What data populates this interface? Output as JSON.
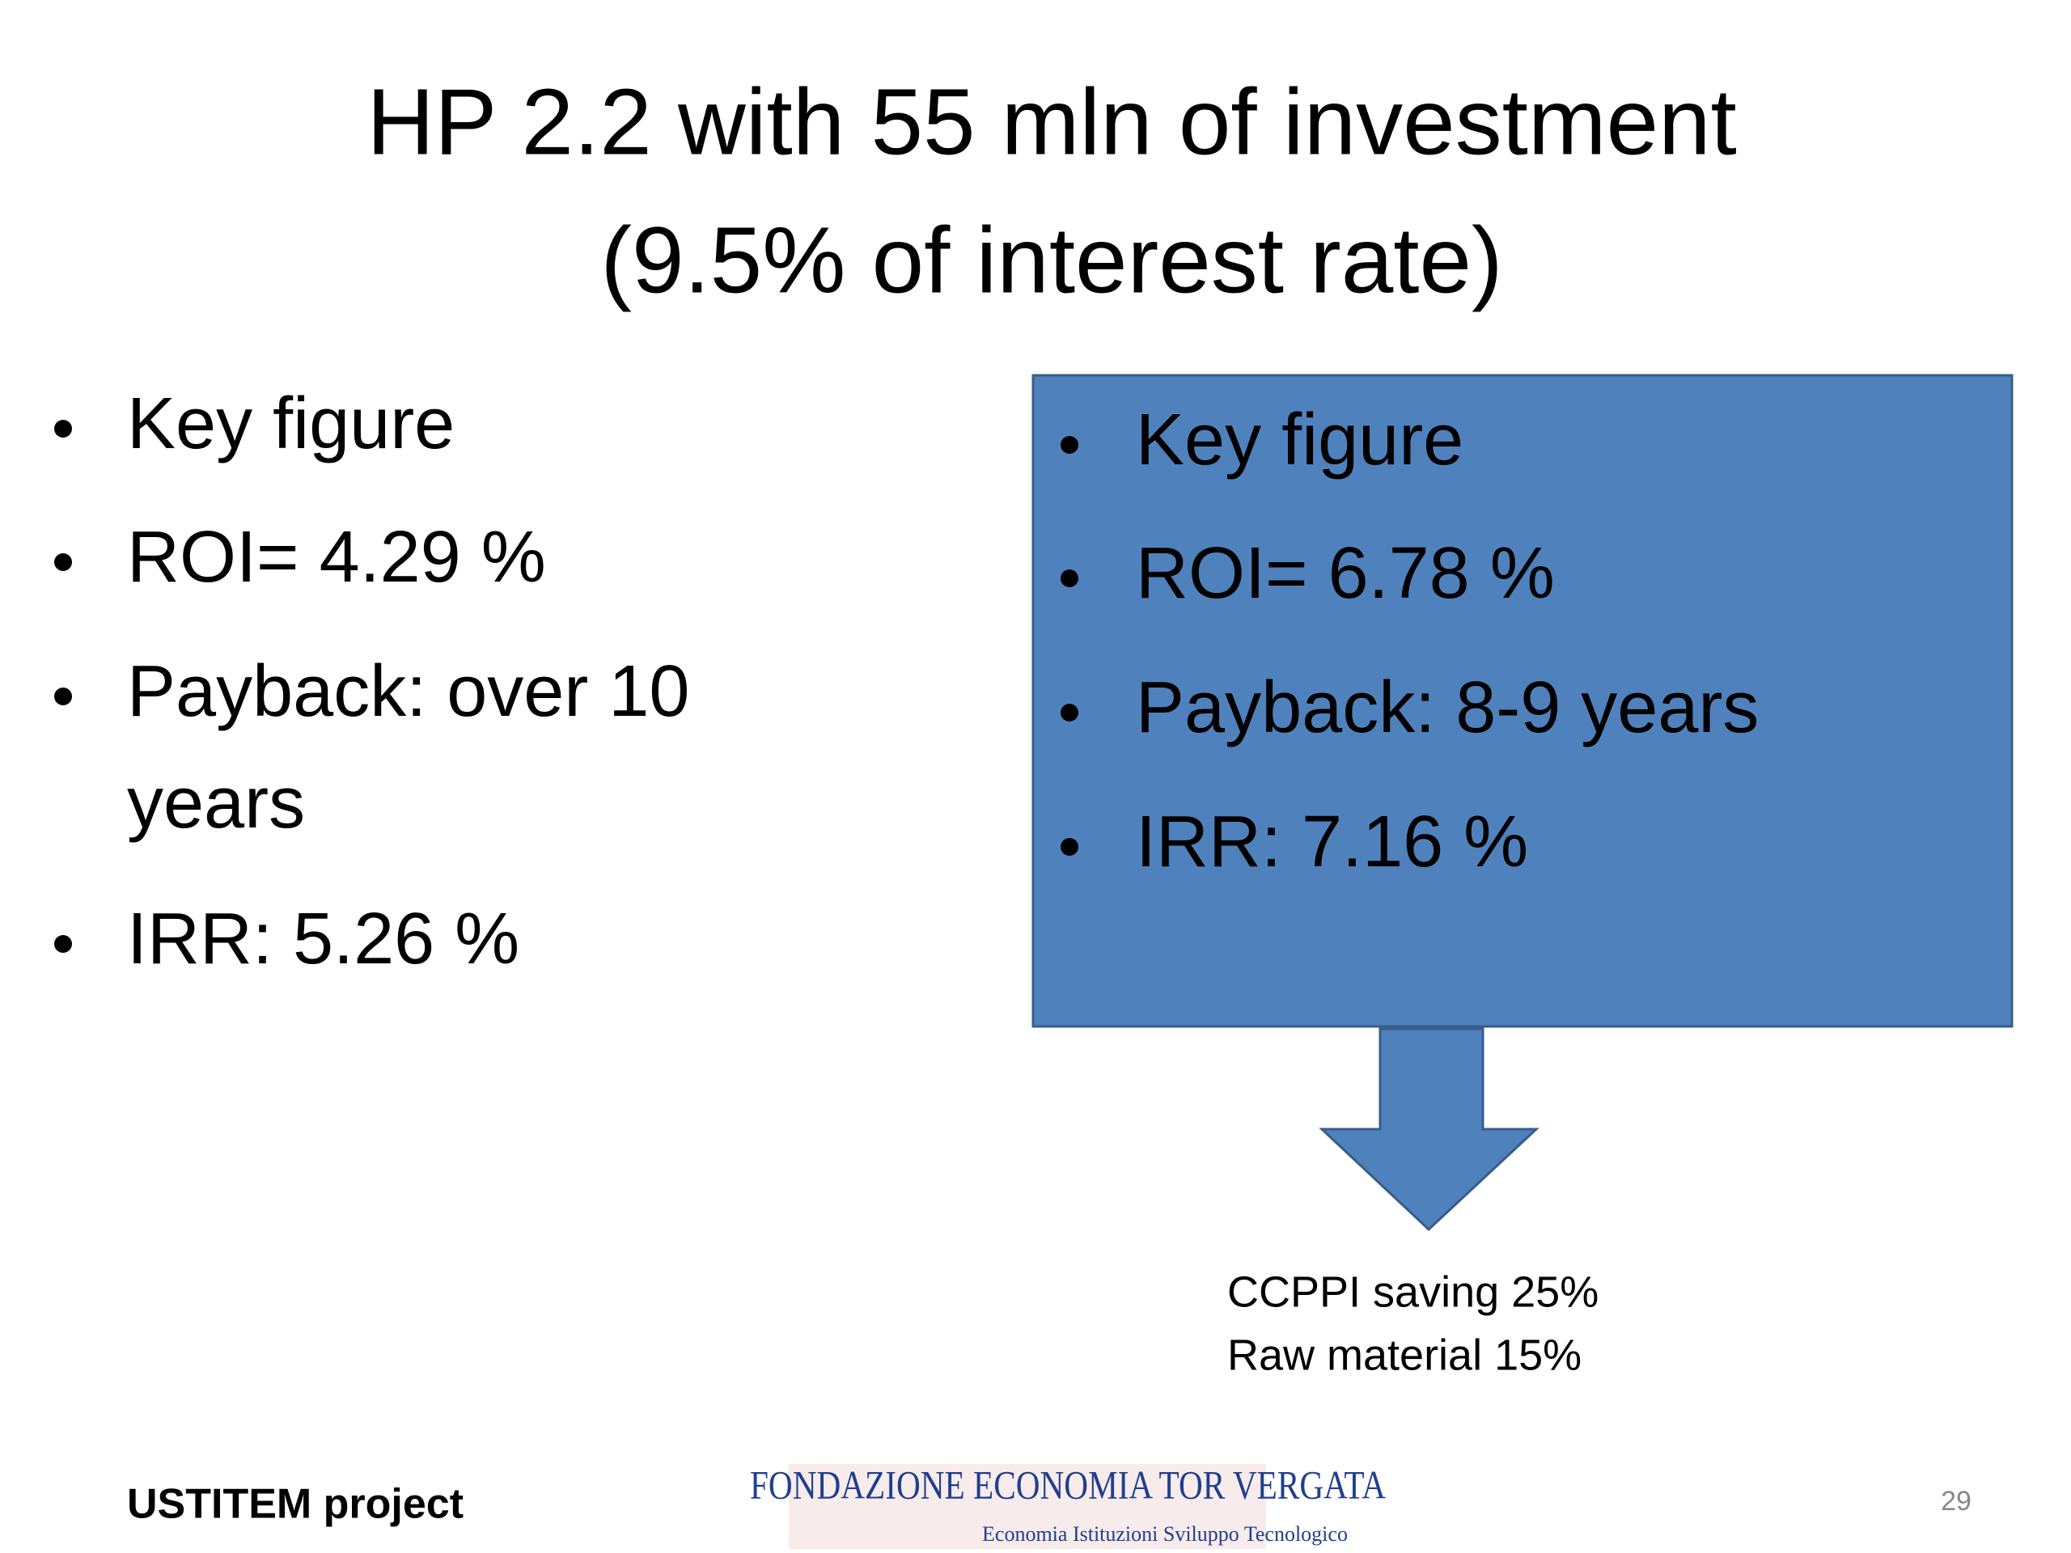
{
  "title": {
    "lines": [
      "HP 2.2 with 55 mln of investment",
      "(9.5% of interest rate)"
    ]
  },
  "left_list": {
    "items": [
      "Key figure",
      "ROI= 4.29 %",
      "Payback: over 10",
      "years",
      "IRR: 5.26 %"
    ]
  },
  "right_box": {
    "items": [
      "Key figure",
      "ROI= 6.78 %",
      "Payback: 8-9 years",
      "IRR: 7.16 %"
    ]
  },
  "arrow_caption": {
    "lines": [
      "CCPPI saving 25%",
      "Raw material 15%"
    ]
  },
  "footer": {
    "project": "USTITEM project",
    "logo_title": "FONDAZIONE ECONOMIA TOR VERGATA",
    "logo_subtitle": "Economia Istituzioni Sviluppo Tecnologico",
    "page_number": "29"
  }
}
